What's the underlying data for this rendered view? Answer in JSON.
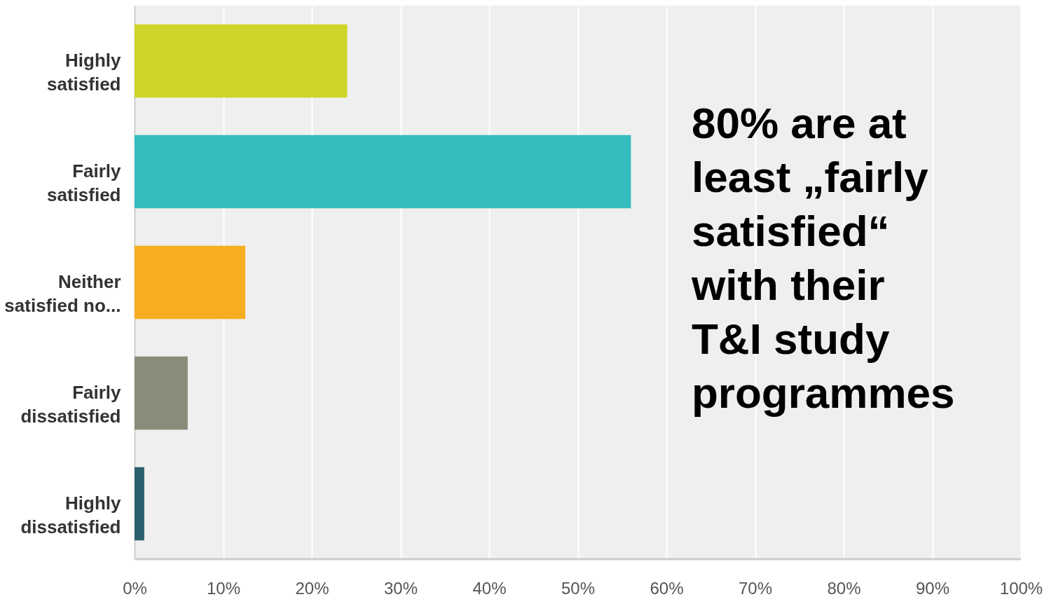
{
  "chart_data": {
    "type": "bar",
    "orientation": "horizontal",
    "categories": [
      "Highly satisfied",
      "Fairly satisfied",
      "Neither satisfied no...",
      "Fairly dissatisfied",
      "Highly dissatisfied"
    ],
    "values": [
      24,
      56,
      12.5,
      6,
      1.1
    ],
    "colors": [
      "#cfd428",
      "#35bcbf",
      "#f6ae20",
      "#8b8b79",
      "#2b5f6d"
    ],
    "xlim": [
      0,
      100
    ],
    "xticks": [
      {
        "value": 0,
        "label": "0%"
      },
      {
        "value": 10,
        "label": "10%"
      },
      {
        "value": 20,
        "label": "20%"
      },
      {
        "value": 30,
        "label": "30%"
      },
      {
        "value": 40,
        "label": "40%"
      },
      {
        "value": 50,
        "label": "50%"
      },
      {
        "value": 60,
        "label": "60%"
      },
      {
        "value": 70,
        "label": "70%"
      },
      {
        "value": 80,
        "label": "80%"
      },
      {
        "value": 90,
        "label": "90%"
      },
      {
        "value": 100,
        "label": "100%"
      }
    ],
    "grid": "x",
    "annotations": [
      "80% are at least „fairly satisfied“ with their T&I study programmes"
    ]
  }
}
